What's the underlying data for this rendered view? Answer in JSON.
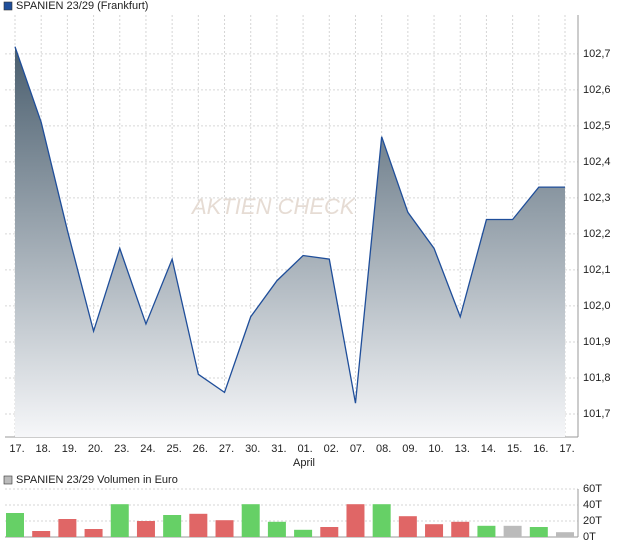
{
  "chart_data": [
    {
      "type": "area",
      "series": [
        {
          "name": "SPANIEN 23/29 (Frankfurt)",
          "color": "#1f4e9a",
          "values": [
            102.72,
            102.51,
            102.21,
            101.93,
            102.16,
            101.95,
            102.13,
            101.81,
            101.76,
            101.97,
            102.07,
            102.14,
            102.13,
            101.73,
            102.47,
            102.26,
            102.16,
            101.97,
            102.24,
            102.24,
            102.33,
            102.33
          ]
        }
      ],
      "categories": [
        "17.",
        "18.",
        "19.",
        "20.",
        "23.",
        "24.",
        "25.",
        "26.",
        "27.",
        "30.",
        "31.",
        "01.",
        "02.",
        "07.",
        "08.",
        "09.",
        "10.",
        "13.",
        "14.",
        "15.",
        "16.",
        "17."
      ],
      "x_sublabel": "April",
      "watermark": "AKTIEN CHECK",
      "ylim": [
        101.636,
        102.808
      ],
      "yticks": [
        {
          "value": 101.7,
          "label": "101,7"
        },
        {
          "value": 101.8,
          "label": "101,8"
        },
        {
          "value": 101.9,
          "label": "101,9"
        },
        {
          "value": 102.0,
          "label": "102,0"
        },
        {
          "value": 102.1,
          "label": "102,1"
        },
        {
          "value": 102.2,
          "label": "102,2"
        },
        {
          "value": 102.3,
          "label": "102,3"
        },
        {
          "value": 102.4,
          "label": "102,4"
        },
        {
          "value": 102.5,
          "label": "102,5"
        },
        {
          "value": 102.6,
          "label": "102,6"
        },
        {
          "value": 102.7,
          "label": "102,7"
        }
      ],
      "grid": true
    },
    {
      "type": "bar",
      "series": [
        {
          "name": "SPANIEN 23/29 Volumen in Euro",
          "color": "#bbbbbb",
          "values": [
            30,
            7.5,
            22.5,
            10,
            41,
            20,
            27.5,
            29,
            21,
            41,
            19,
            9,
            12.5,
            41,
            41,
            26,
            16,
            19,
            14,
            14,
            12.5,
            6
          ],
          "colors": [
            "#66d066",
            "#e06666",
            "#e06666",
            "#e06666",
            "#66d066",
            "#e06666",
            "#66d066",
            "#e06666",
            "#e06666",
            "#66d066",
            "#66d066",
            "#66d066",
            "#e06666",
            "#e06666",
            "#66d066",
            "#e06666",
            "#e06666",
            "#e06666",
            "#66d066",
            "#bbbbbb",
            "#66d066",
            "#bbbbbb"
          ]
        }
      ],
      "ylim": [
        0,
        60
      ],
      "yticks": [
        {
          "value": 0,
          "label": "0T"
        },
        {
          "value": 20,
          "label": "20T"
        },
        {
          "value": 40,
          "label": "40T"
        },
        {
          "value": 60,
          "label": "60T"
        }
      ],
      "grid": true
    }
  ]
}
